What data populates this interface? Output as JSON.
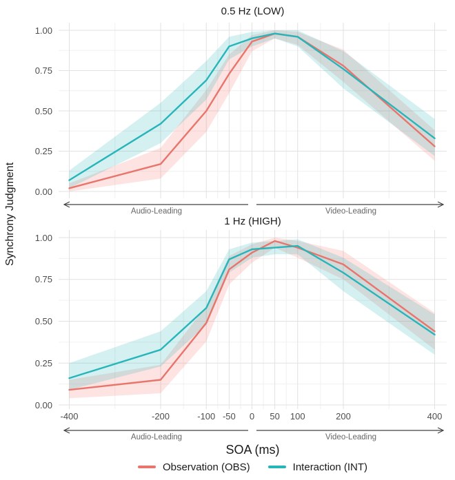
{
  "figure": {
    "x_axis_title": "SOA (ms)",
    "y_axis_title": "Synchrony Judgment",
    "annotations": {
      "left": "Audio-Leading",
      "right": "Video-Leading"
    }
  },
  "legend": {
    "items": [
      {
        "label": "Observation (OBS)",
        "series": "obs"
      },
      {
        "label": "Interaction (INT)",
        "series": "int"
      }
    ]
  },
  "colors": {
    "obs_line": "#E8756C",
    "int_line": "#27B5BA",
    "obs_band": "rgba(246,126,117,0.22)",
    "int_band": "rgba(39,181,186,0.20)",
    "grid_major": "#e1e1e1",
    "grid_minor": "#f0f0f0",
    "arrow": "#424242",
    "tick_text": "#4d4d4d",
    "title_text": "#1a1a1a",
    "annotation_text": "#666666"
  },
  "chart_data": [
    {
      "type": "line",
      "title": "0.5 Hz (LOW)",
      "xlabel": "SOA (ms)",
      "ylabel": "Synchrony Judgment",
      "x": [
        -400,
        -200,
        -100,
        -50,
        0,
        50,
        100,
        200,
        400
      ],
      "xticks": [
        -400,
        -200,
        -100,
        -50,
        0,
        50,
        100,
        200,
        400
      ],
      "xtick_labels": [
        "-400",
        "-200",
        "-100",
        "-50",
        "0",
        "50",
        "100",
        "200",
        "400"
      ],
      "ylim": [
        0,
        1
      ],
      "yticks": [
        0,
        0.25,
        0.5,
        0.75,
        1
      ],
      "ytick_labels": [
        "0.00",
        "0.25",
        "0.50",
        "0.75",
        "1.00"
      ],
      "grid": true,
      "legend_position": "bottom",
      "series": [
        {
          "name": "Observation (OBS)",
          "key": "obs",
          "values": [
            0.02,
            0.17,
            0.5,
            0.73,
            0.93,
            0.98,
            0.96,
            0.78,
            0.28
          ],
          "ci_lower": [
            0.0,
            0.08,
            0.37,
            0.61,
            0.87,
            0.95,
            0.91,
            0.68,
            0.19
          ],
          "ci_upper": [
            0.05,
            0.27,
            0.63,
            0.85,
            0.97,
            1.0,
            0.99,
            0.88,
            0.38
          ]
        },
        {
          "name": "Interaction (INT)",
          "key": "int",
          "values": [
            0.07,
            0.42,
            0.69,
            0.9,
            0.95,
            0.98,
            0.96,
            0.76,
            0.33
          ],
          "ci_lower": [
            0.02,
            0.3,
            0.57,
            0.82,
            0.9,
            0.95,
            0.9,
            0.64,
            0.22
          ],
          "ci_upper": [
            0.13,
            0.55,
            0.81,
            0.96,
            0.99,
            1.0,
            1.0,
            0.87,
            0.45
          ]
        }
      ]
    },
    {
      "type": "line",
      "title": "1 Hz (HIGH)",
      "xlabel": "SOA (ms)",
      "ylabel": "Synchrony Judgment",
      "x": [
        -400,
        -200,
        -100,
        -50,
        0,
        50,
        100,
        200,
        400
      ],
      "xticks": [
        -400,
        -200,
        -100,
        -50,
        0,
        50,
        100,
        200,
        400
      ],
      "xtick_labels": [
        "-400",
        "-200",
        "-100",
        "-50",
        "0",
        "50",
        "100",
        "200",
        "400"
      ],
      "ylim": [
        0,
        1
      ],
      "yticks": [
        0,
        0.25,
        0.5,
        0.75,
        1
      ],
      "ytick_labels": [
        "0.00",
        "0.25",
        "0.50",
        "0.75",
        "1.00"
      ],
      "grid": true,
      "legend_position": "bottom",
      "series": [
        {
          "name": "Observation (OBS)",
          "key": "obs",
          "values": [
            0.09,
            0.15,
            0.49,
            0.81,
            0.91,
            0.98,
            0.94,
            0.84,
            0.44
          ],
          "ci_lower": [
            0.04,
            0.07,
            0.38,
            0.72,
            0.85,
            0.94,
            0.88,
            0.75,
            0.33
          ],
          "ci_upper": [
            0.15,
            0.24,
            0.59,
            0.89,
            0.96,
            1.0,
            0.98,
            0.92,
            0.55
          ]
        },
        {
          "name": "Interaction (INT)",
          "key": "int",
          "values": [
            0.16,
            0.33,
            0.58,
            0.87,
            0.93,
            0.94,
            0.95,
            0.79,
            0.42
          ],
          "ci_lower": [
            0.09,
            0.23,
            0.48,
            0.79,
            0.88,
            0.9,
            0.9,
            0.68,
            0.3
          ],
          "ci_upper": [
            0.25,
            0.44,
            0.68,
            0.93,
            0.97,
            0.98,
            0.99,
            0.88,
            0.54
          ]
        }
      ]
    }
  ]
}
